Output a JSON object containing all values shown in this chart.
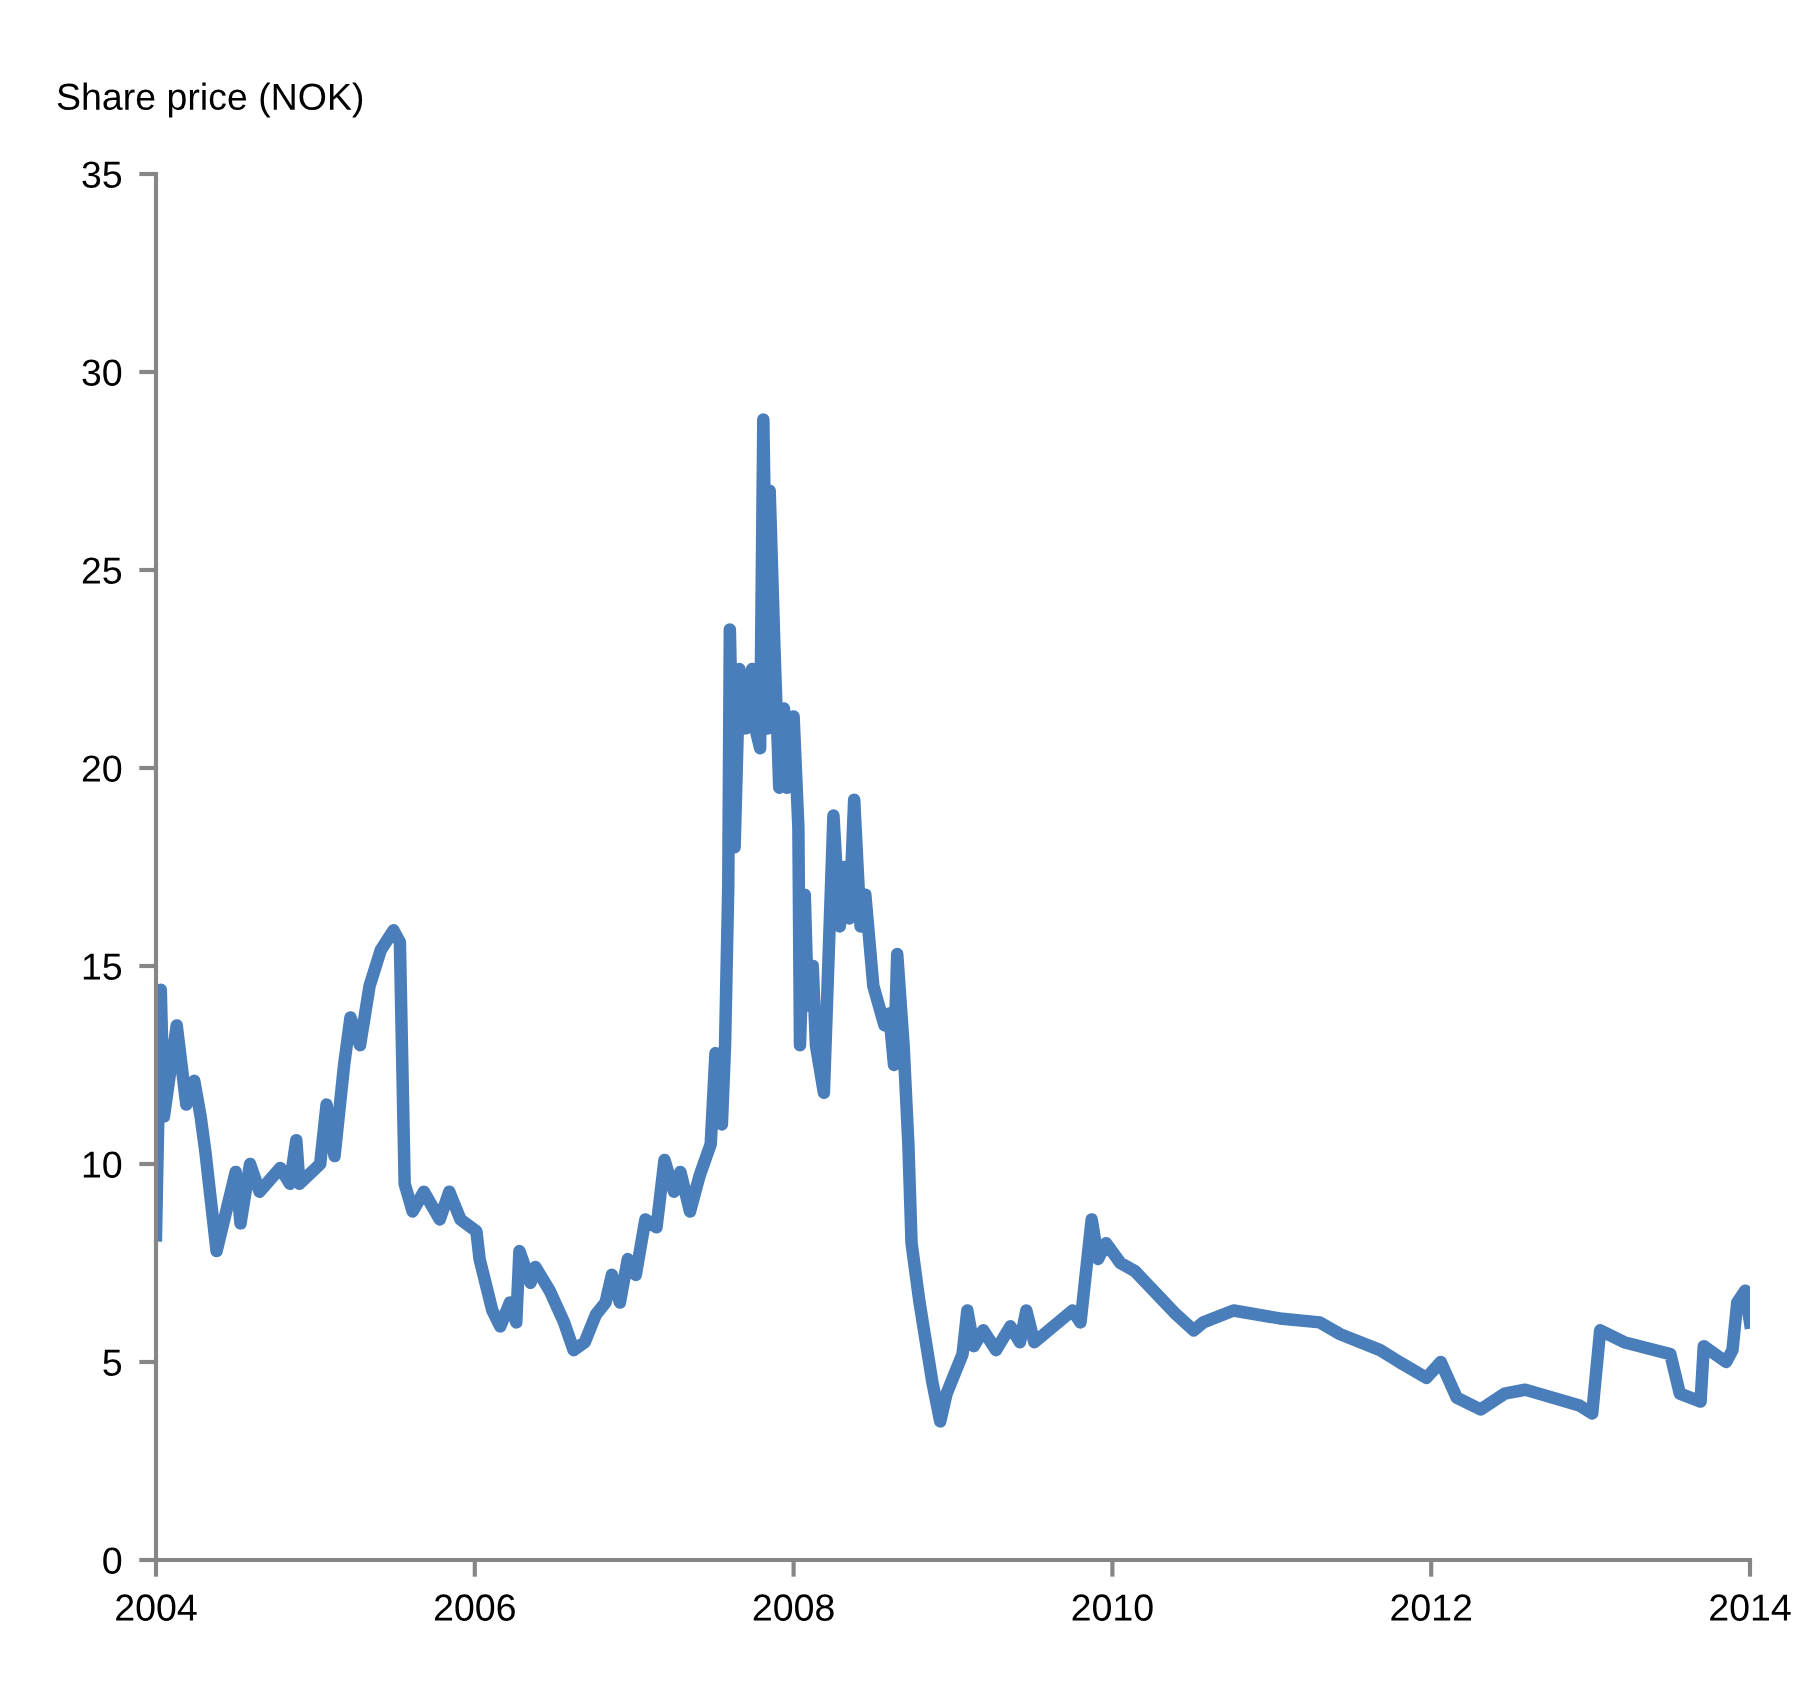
{
  "chart_data": {
    "type": "line",
    "ylabel": "Share price (NOK)",
    "x": [
      2004.0,
      2004.03,
      2004.05,
      2004.13,
      2004.19,
      2004.24,
      2004.28,
      2004.31,
      2004.38,
      2004.5,
      2004.53,
      2004.59,
      2004.65,
      2004.78,
      2004.84,
      2004.88,
      2004.9,
      2005.03,
      2005.07,
      2005.12,
      2005.18,
      2005.22,
      2005.28,
      2005.34,
      2005.41,
      2005.49,
      2005.53,
      2005.56,
      2005.61,
      2005.68,
      2005.78,
      2005.84,
      2005.91,
      2006.01,
      2006.03,
      2006.11,
      2006.16,
      2006.22,
      2006.26,
      2006.28,
      2006.35,
      2006.38,
      2006.47,
      2006.56,
      2006.62,
      2006.69,
      2006.76,
      2006.82,
      2006.86,
      2006.91,
      2006.96,
      2007.01,
      2007.07,
      2007.14,
      2007.19,
      2007.25,
      2007.29,
      2007.35,
      2007.41,
      2007.48,
      2007.51,
      2007.55,
      2007.57,
      2007.59,
      2007.6,
      2007.63,
      2007.66,
      2007.7,
      2007.74,
      2007.76,
      2007.79,
      2007.81,
      2007.84,
      2007.85,
      2007.88,
      2007.91,
      2007.94,
      2007.96,
      2008.0,
      2008.03,
      2008.04,
      2008.07,
      2008.09,
      2008.12,
      2008.14,
      2008.19,
      2008.25,
      2008.29,
      2008.32,
      2008.35,
      2008.38,
      2008.42,
      2008.45,
      2008.5,
      2008.57,
      2008.6,
      2008.63,
      2008.65,
      2008.69,
      2008.72,
      2008.74,
      2008.79,
      2008.87,
      2008.92,
      2008.96,
      2009.02,
      2009.06,
      2009.09,
      2009.13,
      2009.19,
      2009.27,
      2009.36,
      2009.42,
      2009.46,
      2009.51,
      2009.75,
      2009.8,
      2009.87,
      2009.91,
      2009.96,
      2010.05,
      2010.14,
      2010.4,
      2010.51,
      2010.57,
      2010.76,
      2011.05,
      2011.3,
      2011.43,
      2011.68,
      2011.8,
      2011.97,
      2012.06,
      2012.16,
      2012.31,
      2012.46,
      2012.59,
      2012.93,
      2013.01,
      2013.06,
      2013.21,
      2013.5,
      2013.56,
      2013.69,
      2013.71,
      2013.85,
      2013.89,
      2013.92,
      2013.97,
      2014.0
    ],
    "series": [
      {
        "color": "#4a7ebb",
        "values": [
          8.2,
          14.4,
          11.2,
          13.5,
          11.5,
          12.1,
          11.2,
          10.3,
          7.8,
          9.8,
          8.5,
          10.0,
          9.3,
          9.9,
          9.5,
          10.6,
          9.5,
          10.0,
          11.5,
          10.2,
          12.5,
          13.7,
          13.0,
          14.5,
          15.4,
          15.9,
          15.6,
          9.5,
          8.8,
          9.3,
          8.6,
          9.3,
          8.6,
          8.3,
          7.6,
          6.3,
          5.9,
          6.5,
          6.0,
          7.8,
          7.0,
          7.4,
          6.8,
          6.0,
          5.3,
          5.5,
          6.2,
          6.5,
          7.2,
          6.5,
          7.6,
          7.2,
          8.6,
          8.4,
          10.1,
          9.3,
          9.8,
          8.8,
          9.7,
          10.5,
          12.8,
          11.0,
          13.0,
          17.0,
          23.5,
          18.0,
          22.5,
          21.0,
          22.5,
          21.0,
          20.5,
          28.8,
          21.0,
          27.0,
          23.0,
          19.5,
          21.5,
          19.5,
          21.3,
          18.5,
          13.0,
          16.8,
          14.0,
          15.0,
          13.0,
          11.8,
          18.8,
          16.0,
          17.5,
          16.2,
          19.2,
          16.0,
          16.8,
          14.5,
          13.5,
          13.8,
          12.5,
          15.3,
          13.0,
          10.5,
          8.0,
          6.5,
          4.5,
          3.5,
          4.2,
          4.8,
          5.2,
          6.3,
          5.4,
          5.8,
          5.3,
          5.9,
          5.5,
          6.3,
          5.5,
          6.3,
          6.0,
          8.6,
          7.6,
          8.0,
          7.5,
          7.3,
          6.2,
          5.8,
          6.0,
          6.3,
          6.1,
          6.0,
          5.7,
          5.3,
          5.0,
          4.6,
          5.0,
          4.1,
          3.8,
          4.2,
          4.3,
          3.9,
          3.7,
          5.8,
          5.5,
          5.2,
          4.2,
          4.0,
          5.4,
          5.0,
          5.3,
          6.5,
          6.8,
          6.0
        ]
      }
    ],
    "xlim": [
      2004,
      2014
    ],
    "xticks": [
      2004,
      2006,
      2008,
      2010,
      2012,
      2014
    ],
    "ylim": [
      0,
      35
    ],
    "yticks": [
      0,
      5,
      10,
      15,
      20,
      25,
      30,
      35
    ],
    "grid": false,
    "legend": false,
    "marker": "none",
    "line_style": "solid"
  }
}
